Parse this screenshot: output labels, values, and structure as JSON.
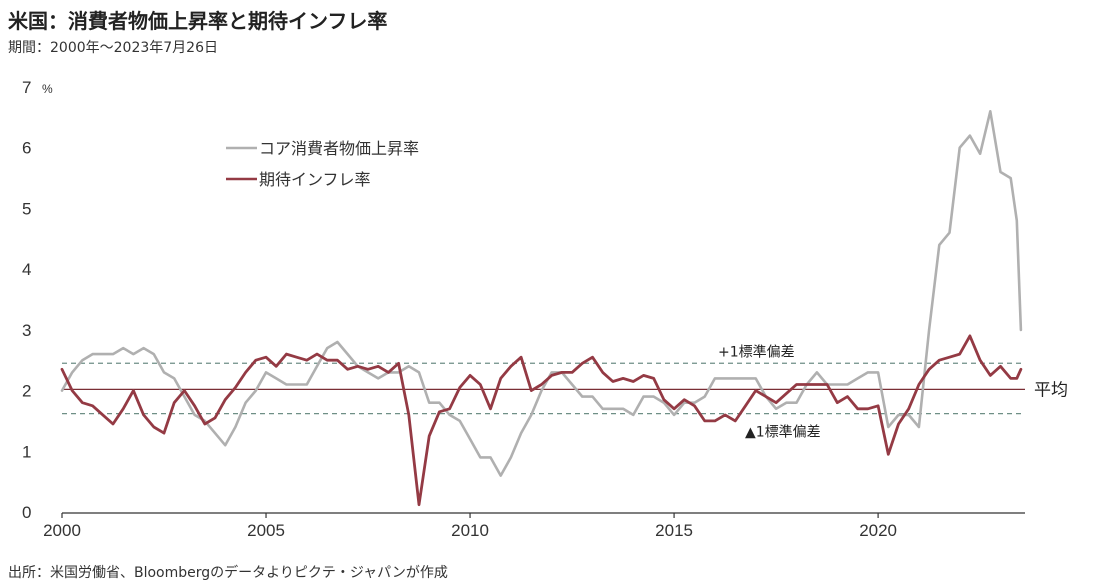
{
  "title": "米国：消費者物価上昇率と期待インフレ率",
  "period": "期間：2000年〜2023年7月26日",
  "source": "出所：米国労働省、Bloombergのデータよりピクテ・ジャパンが作成",
  "chart_data": {
    "type": "line",
    "x_range": [
      "2000-01",
      "2023-07"
    ],
    "ylim": [
      0,
      7
    ],
    "y_unit": "%",
    "y_ticks": [
      0,
      1,
      2,
      3,
      4,
      5,
      6,
      7
    ],
    "x_ticks": [
      2000,
      2005,
      2010,
      2015,
      2020
    ],
    "reference_lines": {
      "mean": {
        "value": 2.02,
        "label": "平均",
        "color": "#7a2e35"
      },
      "plus_1sd": {
        "value": 2.45,
        "label": "+1標準偏差"
      },
      "minus_1sd": {
        "value": 1.62,
        "label": "▲1標準偏差"
      }
    },
    "colors": {
      "core_cpi": "#b0b0b0",
      "expected_inflation": "#943a44",
      "band": "#6f8f86"
    },
    "series": [
      {
        "name": "コア消費者物価上昇率",
        "key": "core_cpi",
        "points": [
          [
            2000.0,
            2.0
          ],
          [
            2000.25,
            2.3
          ],
          [
            2000.5,
            2.5
          ],
          [
            2000.75,
            2.6
          ],
          [
            2001.0,
            2.6
          ],
          [
            2001.25,
            2.6
          ],
          [
            2001.5,
            2.7
          ],
          [
            2001.75,
            2.6
          ],
          [
            2002.0,
            2.7
          ],
          [
            2002.25,
            2.6
          ],
          [
            2002.5,
            2.3
          ],
          [
            2002.75,
            2.2
          ],
          [
            2003.0,
            1.9
          ],
          [
            2003.25,
            1.6
          ],
          [
            2003.5,
            1.5
          ],
          [
            2003.75,
            1.3
          ],
          [
            2004.0,
            1.1
          ],
          [
            2004.25,
            1.4
          ],
          [
            2004.5,
            1.8
          ],
          [
            2004.75,
            2.0
          ],
          [
            2005.0,
            2.3
          ],
          [
            2005.25,
            2.2
          ],
          [
            2005.5,
            2.1
          ],
          [
            2005.75,
            2.1
          ],
          [
            2006.0,
            2.1
          ],
          [
            2006.25,
            2.4
          ],
          [
            2006.5,
            2.7
          ],
          [
            2006.75,
            2.8
          ],
          [
            2007.0,
            2.6
          ],
          [
            2007.25,
            2.4
          ],
          [
            2007.5,
            2.3
          ],
          [
            2007.75,
            2.2
          ],
          [
            2008.0,
            2.3
          ],
          [
            2008.25,
            2.3
          ],
          [
            2008.5,
            2.4
          ],
          [
            2008.75,
            2.3
          ],
          [
            2009.0,
            1.8
          ],
          [
            2009.25,
            1.8
          ],
          [
            2009.5,
            1.6
          ],
          [
            2009.75,
            1.5
          ],
          [
            2010.0,
            1.2
          ],
          [
            2010.25,
            0.9
          ],
          [
            2010.5,
            0.9
          ],
          [
            2010.75,
            0.6
          ],
          [
            2011.0,
            0.9
          ],
          [
            2011.25,
            1.3
          ],
          [
            2011.5,
            1.6
          ],
          [
            2011.75,
            2.0
          ],
          [
            2012.0,
            2.3
          ],
          [
            2012.25,
            2.3
          ],
          [
            2012.5,
            2.1
          ],
          [
            2012.75,
            1.9
          ],
          [
            2013.0,
            1.9
          ],
          [
            2013.25,
            1.7
          ],
          [
            2013.5,
            1.7
          ],
          [
            2013.75,
            1.7
          ],
          [
            2014.0,
            1.6
          ],
          [
            2014.25,
            1.9
          ],
          [
            2014.5,
            1.9
          ],
          [
            2014.75,
            1.8
          ],
          [
            2015.0,
            1.6
          ],
          [
            2015.25,
            1.8
          ],
          [
            2015.5,
            1.8
          ],
          [
            2015.75,
            1.9
          ],
          [
            2016.0,
            2.2
          ],
          [
            2016.25,
            2.2
          ],
          [
            2016.5,
            2.2
          ],
          [
            2016.75,
            2.2
          ],
          [
            2017.0,
            2.2
          ],
          [
            2017.25,
            1.9
          ],
          [
            2017.5,
            1.7
          ],
          [
            2017.75,
            1.8
          ],
          [
            2018.0,
            1.8
          ],
          [
            2018.25,
            2.1
          ],
          [
            2018.5,
            2.3
          ],
          [
            2018.75,
            2.1
          ],
          [
            2019.0,
            2.1
          ],
          [
            2019.25,
            2.1
          ],
          [
            2019.5,
            2.2
          ],
          [
            2019.75,
            2.3
          ],
          [
            2020.0,
            2.3
          ],
          [
            2020.25,
            1.4
          ],
          [
            2020.5,
            1.6
          ],
          [
            2020.75,
            1.6
          ],
          [
            2021.0,
            1.4
          ],
          [
            2021.25,
            3.0
          ],
          [
            2021.5,
            4.4
          ],
          [
            2021.75,
            4.6
          ],
          [
            2022.0,
            6.0
          ],
          [
            2022.25,
            6.2
          ],
          [
            2022.5,
            5.9
          ],
          [
            2022.75,
            6.6
          ],
          [
            2023.0,
            5.6
          ],
          [
            2023.25,
            5.5
          ],
          [
            2023.4,
            4.8
          ],
          [
            2023.5,
            3.0
          ]
        ]
      },
      {
        "name": "期待インフレ率",
        "key": "expected_inflation",
        "points": [
          [
            2000.0,
            2.35
          ],
          [
            2000.25,
            2.0
          ],
          [
            2000.5,
            1.8
          ],
          [
            2000.75,
            1.75
          ],
          [
            2001.0,
            1.6
          ],
          [
            2001.25,
            1.45
          ],
          [
            2001.5,
            1.7
          ],
          [
            2001.75,
            2.0
          ],
          [
            2002.0,
            1.6
          ],
          [
            2002.25,
            1.4
          ],
          [
            2002.5,
            1.3
          ],
          [
            2002.75,
            1.8
          ],
          [
            2003.0,
            2.0
          ],
          [
            2003.25,
            1.75
          ],
          [
            2003.5,
            1.45
          ],
          [
            2003.75,
            1.55
          ],
          [
            2004.0,
            1.85
          ],
          [
            2004.25,
            2.05
          ],
          [
            2004.5,
            2.3
          ],
          [
            2004.75,
            2.5
          ],
          [
            2005.0,
            2.55
          ],
          [
            2005.25,
            2.4
          ],
          [
            2005.5,
            2.6
          ],
          [
            2005.75,
            2.55
          ],
          [
            2006.0,
            2.5
          ],
          [
            2006.25,
            2.6
          ],
          [
            2006.5,
            2.5
          ],
          [
            2006.75,
            2.5
          ],
          [
            2007.0,
            2.35
          ],
          [
            2007.25,
            2.4
          ],
          [
            2007.5,
            2.35
          ],
          [
            2007.75,
            2.4
          ],
          [
            2008.0,
            2.3
          ],
          [
            2008.25,
            2.45
          ],
          [
            2008.5,
            1.6
          ],
          [
            2008.75,
            0.12
          ],
          [
            2009.0,
            1.25
          ],
          [
            2009.25,
            1.65
          ],
          [
            2009.5,
            1.7
          ],
          [
            2009.75,
            2.05
          ],
          [
            2010.0,
            2.25
          ],
          [
            2010.25,
            2.1
          ],
          [
            2010.5,
            1.7
          ],
          [
            2010.75,
            2.2
          ],
          [
            2011.0,
            2.4
          ],
          [
            2011.25,
            2.55
          ],
          [
            2011.5,
            2.0
          ],
          [
            2011.75,
            2.1
          ],
          [
            2012.0,
            2.25
          ],
          [
            2012.25,
            2.3
          ],
          [
            2012.5,
            2.3
          ],
          [
            2012.75,
            2.45
          ],
          [
            2013.0,
            2.55
          ],
          [
            2013.25,
            2.3
          ],
          [
            2013.5,
            2.15
          ],
          [
            2013.75,
            2.2
          ],
          [
            2014.0,
            2.15
          ],
          [
            2014.25,
            2.25
          ],
          [
            2014.5,
            2.2
          ],
          [
            2014.75,
            1.85
          ],
          [
            2015.0,
            1.7
          ],
          [
            2015.25,
            1.85
          ],
          [
            2015.5,
            1.75
          ],
          [
            2015.75,
            1.5
          ],
          [
            2016.0,
            1.5
          ],
          [
            2016.25,
            1.6
          ],
          [
            2016.5,
            1.5
          ],
          [
            2016.75,
            1.75
          ],
          [
            2017.0,
            2.0
          ],
          [
            2017.25,
            1.9
          ],
          [
            2017.5,
            1.8
          ],
          [
            2017.75,
            1.95
          ],
          [
            2018.0,
            2.1
          ],
          [
            2018.25,
            2.1
          ],
          [
            2018.5,
            2.1
          ],
          [
            2018.75,
            2.1
          ],
          [
            2019.0,
            1.8
          ],
          [
            2019.25,
            1.9
          ],
          [
            2019.5,
            1.7
          ],
          [
            2019.75,
            1.7
          ],
          [
            2020.0,
            1.75
          ],
          [
            2020.25,
            0.95
          ],
          [
            2020.5,
            1.45
          ],
          [
            2020.75,
            1.7
          ],
          [
            2021.0,
            2.1
          ],
          [
            2021.25,
            2.35
          ],
          [
            2021.5,
            2.5
          ],
          [
            2021.75,
            2.55
          ],
          [
            2022.0,
            2.6
          ],
          [
            2022.25,
            2.9
          ],
          [
            2022.5,
            2.5
          ],
          [
            2022.75,
            2.25
          ],
          [
            2023.0,
            2.4
          ],
          [
            2023.25,
            2.2
          ],
          [
            2023.4,
            2.2
          ],
          [
            2023.5,
            2.35
          ]
        ]
      }
    ]
  }
}
